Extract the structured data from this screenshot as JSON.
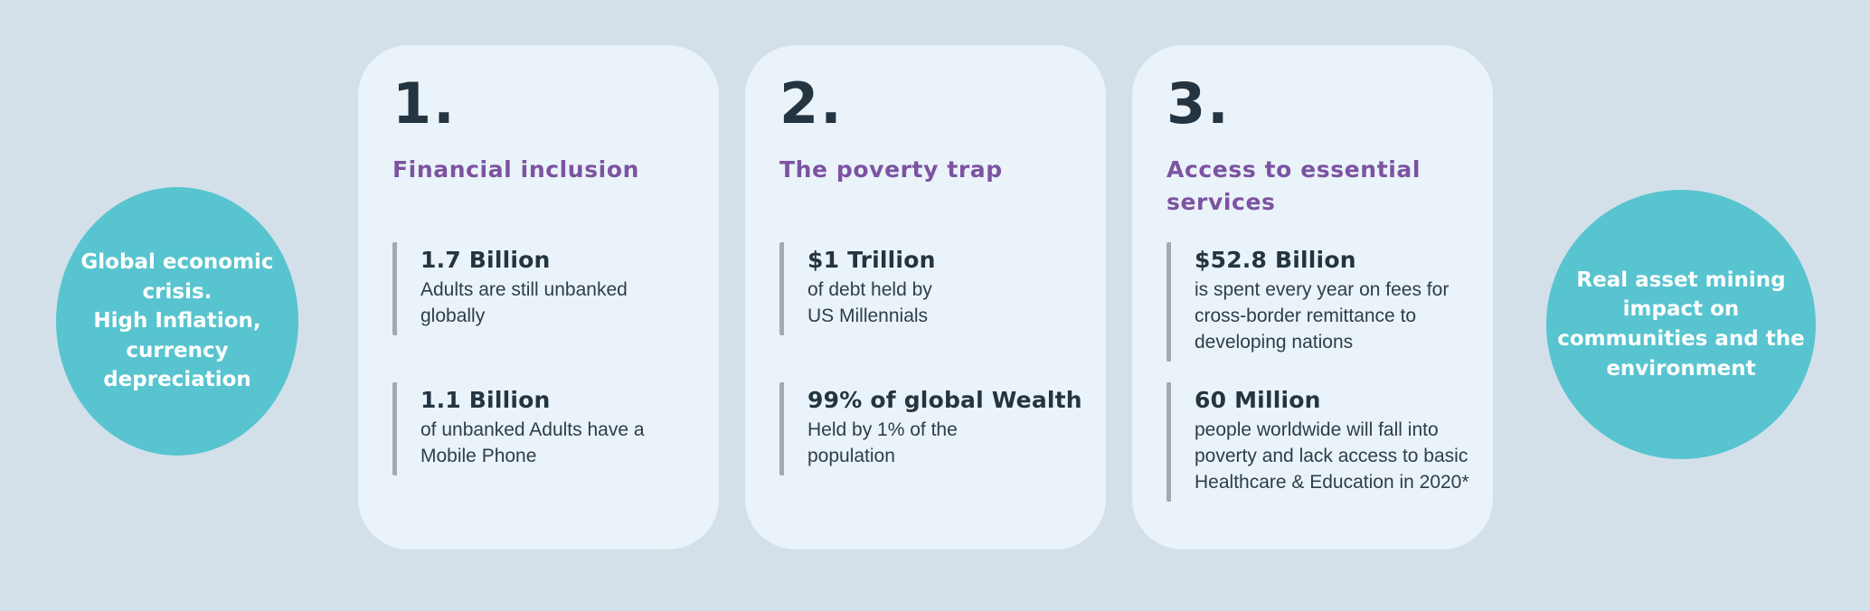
{
  "page": {
    "background_color": "#d3e0ea",
    "card_background_color": "#e9f3f9",
    "circle_color": "#58c4cf",
    "title_color": "#7c53a1",
    "text_dark_color": "#243440"
  },
  "left_circle": {
    "text": "Global economic\ncrisis.\nHigh Inflation,\ncurrency\ndepreciation"
  },
  "right_circle": {
    "text": "Real asset  mining\nimpact on\ncommunities and the\nenvironment"
  },
  "cards": [
    {
      "number": "1.",
      "title": "Financial inclusion",
      "stats": [
        {
          "value": "1.7 Billion",
          "description": "Adults are still unbanked\nglobally"
        },
        {
          "value": "1.1 Billion",
          "description": "of unbanked Adults have a\nMobile Phone"
        }
      ]
    },
    {
      "number": "2.",
      "title": "The poverty trap",
      "stats": [
        {
          "value": "$1 Trillion",
          "description": "of debt held by\nUS Millennials"
        },
        {
          "value": "99% of global Wealth",
          "description": "Held by 1% of the\npopulation"
        }
      ]
    },
    {
      "number": "3.",
      "title": "Access to essential\nservices",
      "stats": [
        {
          "value": "$52.8 Billion",
          "description": "is spent every year on fees for\ncross-border remittance to\ndeveloping nations"
        },
        {
          "value": "60 Million",
          "description": "people worldwide will fall into\npoverty and lack access to basic\nHealthcare & Education in 2020*"
        }
      ]
    }
  ]
}
